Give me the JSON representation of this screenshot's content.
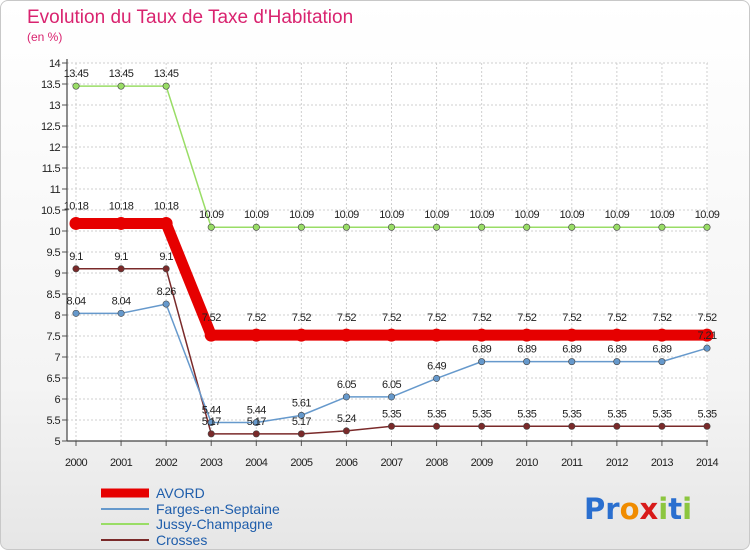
{
  "chart_data": {
    "type": "line",
    "title": "Evolution du Taux de Taxe d'Habitation",
    "unit_label": "(en %)",
    "x": [
      "2000",
      "2001",
      "2002",
      "2003",
      "2004",
      "2005",
      "2006",
      "2007",
      "2008",
      "2009",
      "2010",
      "2011",
      "2012",
      "2013",
      "2014"
    ],
    "ylim": [
      5,
      14
    ],
    "yticks": [
      "5",
      "5.5",
      "6",
      "6.5",
      "7",
      "7.5",
      "8",
      "8.5",
      "9",
      "9.5",
      "10",
      "10.5",
      "11",
      "11.5",
      "12",
      "12.5",
      "13",
      "13.5",
      "14"
    ],
    "grid": true,
    "legend_position": "bottom-left",
    "series": [
      {
        "name": "AVORD",
        "color": "#e60000",
        "values": [
          10.18,
          10.18,
          10.18,
          7.52,
          7.52,
          7.52,
          7.52,
          7.52,
          7.52,
          7.52,
          7.52,
          7.52,
          7.52,
          7.52,
          7.52
        ],
        "labels": [
          "10.18",
          "10.18",
          "10.18",
          "7.52",
          "7.52",
          "7.52",
          "7.52",
          "7.52",
          "7.52",
          "7.52",
          "7.52",
          "7.52",
          "7.52",
          "7.52",
          "7.52"
        ]
      },
      {
        "name": "Farges-en-Septaine",
        "color": "#6699cc",
        "values": [
          8.04,
          8.04,
          8.26,
          5.44,
          5.44,
          5.61,
          6.05,
          6.05,
          6.49,
          6.89,
          6.89,
          6.89,
          6.89,
          6.89,
          7.21
        ],
        "labels": [
          "8.04",
          "8.04",
          "8.26",
          "5.44",
          "5.44",
          "5.61",
          "6.05",
          "6.05",
          "6.49",
          "6.89",
          "6.89",
          "6.89",
          "6.89",
          "6.89",
          "7.21"
        ]
      },
      {
        "name": "Jussy-Champagne",
        "color": "#99dd66",
        "values": [
          13.45,
          13.45,
          13.45,
          10.09,
          10.09,
          10.09,
          10.09,
          10.09,
          10.09,
          10.09,
          10.09,
          10.09,
          10.09,
          10.09,
          10.09
        ],
        "labels": [
          "13.45",
          "13.45",
          "13.45",
          "10.09",
          "10.09",
          "10.09",
          "10.09",
          "10.09",
          "10.09",
          "10.09",
          "10.09",
          "10.09",
          "10.09",
          "10.09",
          "10.09"
        ]
      },
      {
        "name": "Crosses",
        "color": "#7a2a2a",
        "values": [
          9.1,
          9.1,
          9.1,
          5.17,
          5.17,
          5.17,
          5.24,
          5.35,
          5.35,
          5.35,
          5.35,
          5.35,
          5.35,
          5.35,
          5.35
        ],
        "labels": [
          "9.1",
          "9.1",
          "9.1",
          "5.17",
          "5.17",
          "5.17",
          "5.24",
          "5.35",
          "5.35",
          "5.35",
          "5.35",
          "5.35",
          "5.35",
          "5.35",
          "5.35"
        ]
      }
    ]
  },
  "brand": {
    "name": "Proxiti",
    "letters": [
      "P",
      "r",
      "o",
      "x",
      "i",
      "t",
      "i"
    ],
    "colors": [
      "#2a6fcf",
      "#2a6fcf",
      "#f08c00",
      "#d81b1b",
      "#8cc63f",
      "#2a6fcf",
      "#8cc63f"
    ]
  }
}
